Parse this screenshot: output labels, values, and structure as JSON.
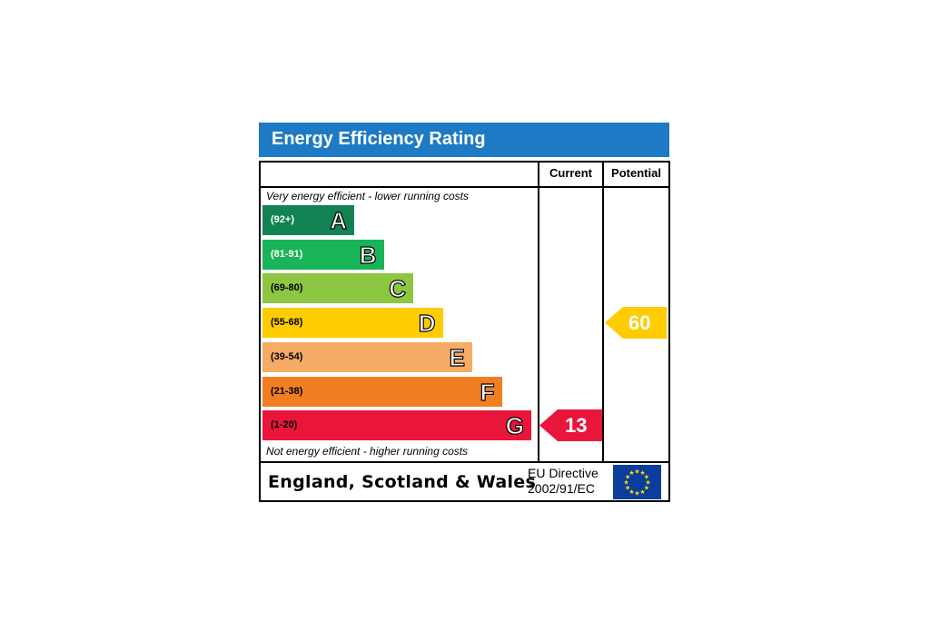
{
  "chart_data": {
    "type": "bar",
    "title": "Energy Efficiency Rating",
    "columns": [
      "Current",
      "Potential"
    ],
    "top_note": "Very energy efficient - lower running costs",
    "bottom_note": "Not energy efficient - higher running costs",
    "bands": [
      {
        "range": "(92+)",
        "letter": "A",
        "color": "#138253",
        "range_color": "#ffffff"
      },
      {
        "range": "(81-91)",
        "letter": "B",
        "color": "#19b458",
        "range_color": "#ffffff"
      },
      {
        "range": "(69-80)",
        "letter": "C",
        "color": "#8dc640",
        "range_color": "#000000"
      },
      {
        "range": "(55-68)",
        "letter": "D",
        "color": "#ffcc00",
        "range_color": "#000000"
      },
      {
        "range": "(39-54)",
        "letter": "E",
        "color": "#f6ac64",
        "range_color": "#000000"
      },
      {
        "range": "(21-38)",
        "letter": "F",
        "color": "#f07f22",
        "range_color": "#000000"
      },
      {
        "range": "(1-20)",
        "letter": "G",
        "color": "#e9153b",
        "range_color": "#000000"
      }
    ],
    "current": {
      "value": 13,
      "band": "G",
      "color": "#e9153b"
    },
    "potential": {
      "value": 60,
      "band": "D",
      "color": "#ffcc00"
    },
    "footer": {
      "region": "England, Scotland & Wales",
      "directive_line1": "EU Directive",
      "directive_line2": "2002/91/EC"
    }
  },
  "colors": {
    "title_bar": "#1e7ac4",
    "flag": "#0a3d9c",
    "flag_stars": "#ffdd00"
  },
  "icons": {
    "flag": "eu-flag-icon"
  }
}
